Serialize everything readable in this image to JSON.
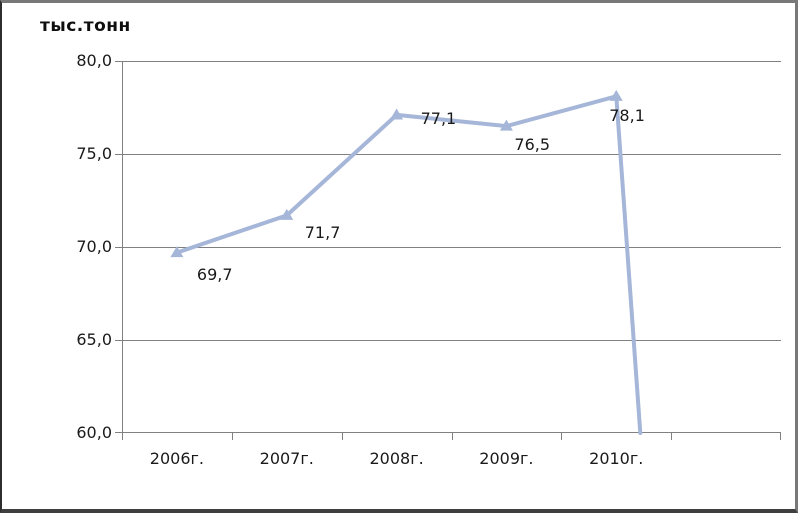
{
  "chart_data": {
    "type": "line",
    "title": "тыс.тонн",
    "categories": [
      "2006г.",
      "2007г.",
      "2008г.",
      "2009г.",
      "2010г."
    ],
    "values": [
      69.7,
      71.7,
      77.1,
      76.5,
      78.1
    ],
    "point_labels": [
      "69,7",
      "71,7",
      "77,1",
      "76,5",
      "78,1"
    ],
    "series_name": "",
    "xlabel": "",
    "ylabel": "тыс.тонн",
    "ylim": [
      60,
      80
    ],
    "ytick_labels": [
      "80,0",
      "75,0",
      "70,0",
      "65,0",
      "60,0"
    ],
    "ytick_values": [
      80,
      75,
      70,
      65,
      60
    ],
    "extra_empty_category_slot": true,
    "tail_drop_to_axis_after_last_point": true,
    "grid": "horizontal",
    "legend_position": "none",
    "line_color": "#a5b6d8",
    "grid_color": "#808080",
    "text_color": "#1a1a1a",
    "marker": "triangle-up"
  }
}
